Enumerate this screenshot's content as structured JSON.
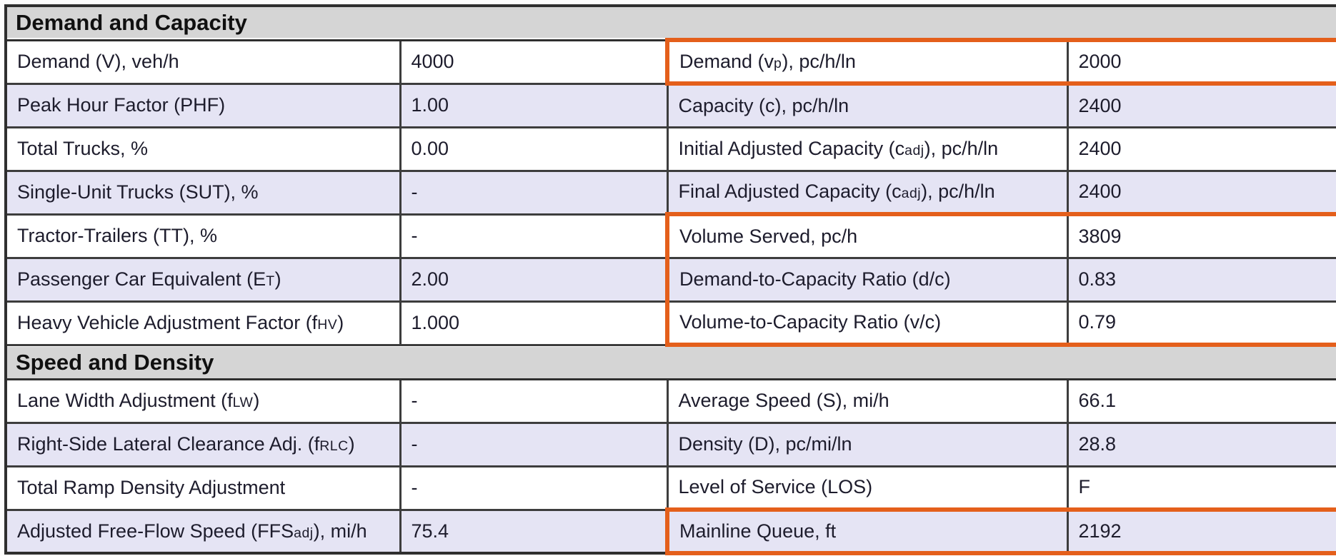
{
  "colors": {
    "highlight_box": "#e45f1b",
    "row_stripe": "#e5e4f4",
    "section_header_bg": "#d5d5d5",
    "grid_border": "#3d3d3d",
    "text": "#1d1c2c"
  },
  "sections": [
    {
      "title": "Demand and Capacity",
      "rows": [
        {
          "left": {
            "parts": [
              [
                "Demand (V), veh/h",
                false
              ]
            ],
            "value": "4000"
          },
          "right": {
            "parts": [
              [
                "Demand (v",
                false
              ],
              [
                "p",
                true
              ],
              [
                "), pc/h/ln",
                false
              ]
            ],
            "value": "2000",
            "highlight": "single"
          }
        },
        {
          "left": {
            "parts": [
              [
                "Peak Hour Factor (PHF)",
                false
              ]
            ],
            "value": "1.00"
          },
          "right": {
            "parts": [
              [
                "Capacity (c), pc/h/ln",
                false
              ]
            ],
            "value": "2400",
            "highlight": null
          }
        },
        {
          "left": {
            "parts": [
              [
                "Total Trucks, %",
                false
              ]
            ],
            "value": "0.00"
          },
          "right": {
            "parts": [
              [
                "Initial Adjusted Capacity (c",
                false
              ],
              [
                "adj",
                true
              ],
              [
                "), pc/h/ln",
                false
              ]
            ],
            "value": "2400",
            "highlight": null
          }
        },
        {
          "left": {
            "parts": [
              [
                "Single-Unit Trucks (SUT), %",
                false
              ]
            ],
            "value": "-"
          },
          "right": {
            "parts": [
              [
                "Final Adjusted Capacity (c",
                false
              ],
              [
                "adj",
                true
              ],
              [
                "), pc/h/ln",
                false
              ]
            ],
            "value": "2400",
            "highlight": null
          }
        },
        {
          "left": {
            "parts": [
              [
                "Tractor-Trailers (TT), %",
                false
              ]
            ],
            "value": "-"
          },
          "right": {
            "parts": [
              [
                "Volume Served, pc/h",
                false
              ]
            ],
            "value": "3809",
            "highlight": "start"
          }
        },
        {
          "left": {
            "parts": [
              [
                "Passenger Car Equivalent (E",
                false
              ],
              [
                "T",
                true
              ],
              [
                ")",
                false
              ]
            ],
            "value": "2.00"
          },
          "right": {
            "parts": [
              [
                "Demand-to-Capacity Ratio (d/c)",
                false
              ]
            ],
            "value": "0.83",
            "highlight": "mid"
          }
        },
        {
          "left": {
            "parts": [
              [
                "Heavy Vehicle Adjustment Factor (f",
                false
              ],
              [
                "HV",
                true
              ],
              [
                ")",
                false
              ]
            ],
            "value": "1.000"
          },
          "right": {
            "parts": [
              [
                "Volume-to-Capacity Ratio (v/c)",
                false
              ]
            ],
            "value": "0.79",
            "highlight": "end"
          }
        }
      ]
    },
    {
      "title": "Speed and Density",
      "rows": [
        {
          "left": {
            "parts": [
              [
                "Lane Width Adjustment (f",
                false
              ],
              [
                "LW",
                true
              ],
              [
                ")",
                false
              ]
            ],
            "value": "-"
          },
          "right": {
            "parts": [
              [
                "Average Speed (S), mi/h",
                false
              ]
            ],
            "value": "66.1",
            "highlight": null
          }
        },
        {
          "left": {
            "parts": [
              [
                "Right-Side Lateral Clearance Adj. (f",
                false
              ],
              [
                "RLC",
                true
              ],
              [
                ")",
                false
              ]
            ],
            "value": "-"
          },
          "right": {
            "parts": [
              [
                "Density (D), pc/mi/ln",
                false
              ]
            ],
            "value": "28.8",
            "highlight": null
          }
        },
        {
          "left": {
            "parts": [
              [
                "Total Ramp Density Adjustment",
                false
              ]
            ],
            "value": "-"
          },
          "right": {
            "parts": [
              [
                "Level of Service (LOS)",
                false
              ]
            ],
            "value": "F",
            "highlight": null
          }
        },
        {
          "left": {
            "parts": [
              [
                "Adjusted Free-Flow Speed (FFS",
                false
              ],
              [
                "adj",
                true
              ],
              [
                "), mi/h",
                false
              ]
            ],
            "value": "75.4"
          },
          "right": {
            "parts": [
              [
                "Mainline Queue, ft",
                false
              ]
            ],
            "value": "2192",
            "highlight": "single"
          }
        }
      ]
    }
  ]
}
